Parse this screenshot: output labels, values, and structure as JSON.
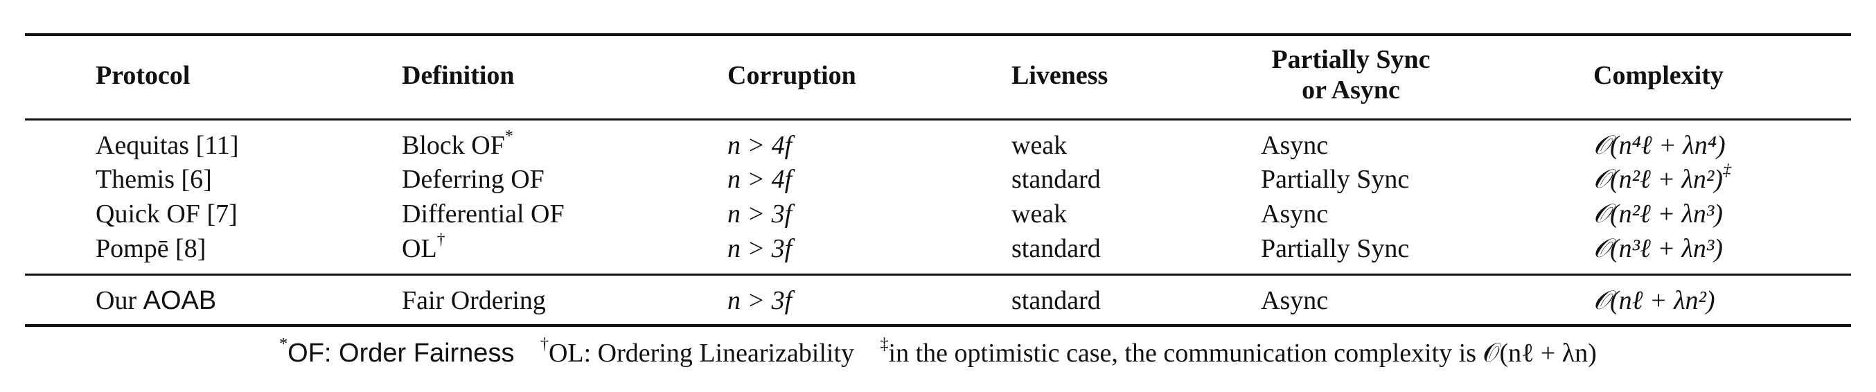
{
  "table": {
    "headers": {
      "protocol": "Protocol",
      "definition": "Definition",
      "corruption": "Corruption",
      "liveness": "Liveness",
      "sync_line1": "Partially Sync",
      "sync_line2": "or Async",
      "complexity": "Complexity"
    },
    "rows": [
      {
        "protocol": "Aequitas [11]",
        "definition": "Block OF",
        "def_mark": "*",
        "corruption": "n > 4f",
        "liveness": "weak",
        "sync": "Async",
        "complexity": "𝒪(n⁴ℓ + λn⁴)",
        "complexity_mark": ""
      },
      {
        "protocol": "Themis [6]",
        "definition": "Deferring OF",
        "def_mark": "",
        "corruption": "n > 4f",
        "liveness": "standard",
        "sync": "Partially Sync",
        "complexity": "𝒪(n²ℓ + λn²)",
        "complexity_mark": "‡"
      },
      {
        "protocol": "Quick OF [7]",
        "definition": "Differential OF",
        "def_mark": "",
        "corruption": "n > 3f",
        "liveness": "weak",
        "sync": "Async",
        "complexity": "𝒪(n²ℓ + λn³)",
        "complexity_mark": ""
      },
      {
        "protocol": "Pompē [8]",
        "definition": "OL",
        "def_mark": "†",
        "corruption": "n > 3f",
        "liveness": "standard",
        "sync": "Partially Sync",
        "complexity": "𝒪(n³ℓ + λn³)",
        "complexity_mark": ""
      }
    ],
    "ours": {
      "protocol_prefix": "Our",
      "protocol_name": "AOAB",
      "definition": "Fair Ordering",
      "corruption": "n > 3f",
      "liveness": "standard",
      "sync": "Async",
      "complexity": "𝒪(nℓ + λn²)"
    }
  },
  "footnotes": {
    "f1_mark": "*",
    "f1_text": "OF: Order Fairness",
    "f2_mark": "†",
    "f2_text": "OL: Ordering Linearizability",
    "f3_mark": "‡",
    "f3_text": "in the optimistic case, the communication complexity is 𝒪(nℓ + λn)"
  }
}
